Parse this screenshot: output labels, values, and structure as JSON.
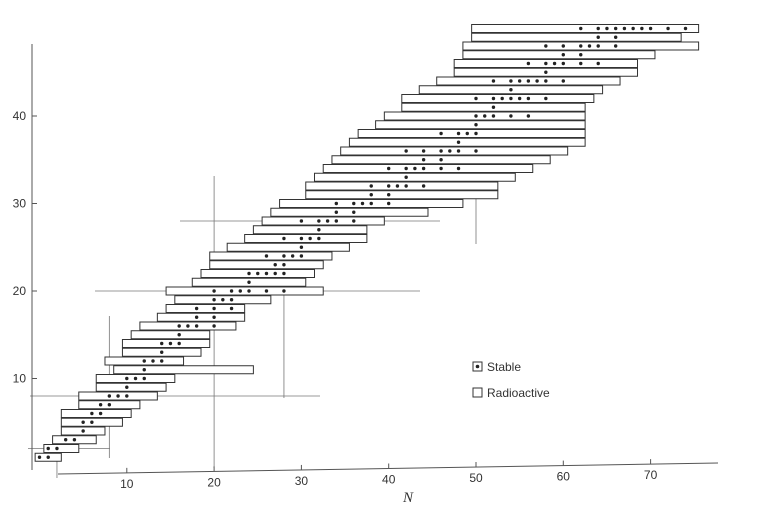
{
  "chart_data": {
    "type": "scatter",
    "title": "",
    "xlabel": "N",
    "ylabel": "",
    "x_ticks": [
      "10",
      "20",
      "30",
      "40",
      "50",
      "60",
      "70"
    ],
    "y_ticks": [
      "10",
      "20",
      "30",
      "40"
    ],
    "xlim": [
      0,
      80
    ],
    "ylim": [
      0,
      50
    ],
    "grid": false,
    "legend_position": "lower-right",
    "legend": [
      {
        "key": "stable",
        "label": "Stable"
      },
      {
        "key": "radioactive",
        "label": "Radioactive"
      }
    ],
    "magic_numbers": {
      "N": [
        2,
        8,
        20,
        28,
        50
      ],
      "Z": [
        2,
        8,
        20,
        28
      ]
    },
    "isotopes": [
      {
        "z": 1,
        "n_min": 0,
        "n_max": 2,
        "stable": [
          0,
          1
        ]
      },
      {
        "z": 2,
        "n_min": 1,
        "n_max": 4,
        "stable": [
          1,
          2
        ]
      },
      {
        "z": 3,
        "n_min": 2,
        "n_max": 6,
        "stable": [
          3,
          4
        ]
      },
      {
        "z": 4,
        "n_min": 3,
        "n_max": 7,
        "stable": [
          5
        ]
      },
      {
        "z": 5,
        "n_min": 3,
        "n_max": 9,
        "stable": [
          5,
          6
        ]
      },
      {
        "z": 6,
        "n_min": 3,
        "n_max": 10,
        "stable": [
          6,
          7
        ]
      },
      {
        "z": 7,
        "n_min": 5,
        "n_max": 11,
        "stable": [
          7,
          8
        ]
      },
      {
        "z": 8,
        "n_min": 5,
        "n_max": 13,
        "stable": [
          8,
          9,
          10
        ]
      },
      {
        "z": 9,
        "n_min": 7,
        "n_max": 14,
        "stable": [
          10
        ]
      },
      {
        "z": 10,
        "n_min": 7,
        "n_max": 15,
        "stable": [
          10,
          11,
          12
        ]
      },
      {
        "z": 11,
        "n_min": 9,
        "n_max": 24,
        "stable": [
          12
        ]
      },
      {
        "z": 12,
        "n_min": 8,
        "n_max": 16,
        "stable": [
          12,
          13,
          14
        ]
      },
      {
        "z": 13,
        "n_min": 10,
        "n_max": 18,
        "stable": [
          14
        ]
      },
      {
        "z": 14,
        "n_min": 10,
        "n_max": 19,
        "stable": [
          14,
          15,
          16
        ]
      },
      {
        "z": 15,
        "n_min": 11,
        "n_max": 19,
        "stable": [
          16
        ]
      },
      {
        "z": 16,
        "n_min": 12,
        "n_max": 22,
        "stable": [
          16,
          17,
          18,
          20
        ]
      },
      {
        "z": 17,
        "n_min": 14,
        "n_max": 23,
        "stable": [
          18,
          20
        ]
      },
      {
        "z": 18,
        "n_min": 15,
        "n_max": 23,
        "stable": [
          18,
          20,
          22
        ]
      },
      {
        "z": 19,
        "n_min": 16,
        "n_max": 26,
        "stable": [
          20,
          21,
          22
        ]
      },
      {
        "z": 20,
        "n_min": 15,
        "n_max": 32,
        "stable": [
          20,
          22,
          23,
          24,
          26,
          28
        ]
      },
      {
        "z": 21,
        "n_min": 18,
        "n_max": 30,
        "stable": [
          24
        ]
      },
      {
        "z": 22,
        "n_min": 19,
        "n_max": 31,
        "stable": [
          24,
          25,
          26,
          27,
          28
        ]
      },
      {
        "z": 23,
        "n_min": 20,
        "n_max": 32,
        "stable": [
          27,
          28
        ]
      },
      {
        "z": 24,
        "n_min": 20,
        "n_max": 33,
        "stable": [
          26,
          28,
          29,
          30
        ]
      },
      {
        "z": 25,
        "n_min": 22,
        "n_max": 35,
        "stable": [
          30
        ]
      },
      {
        "z": 26,
        "n_min": 24,
        "n_max": 37,
        "stable": [
          28,
          30,
          31,
          32
        ]
      },
      {
        "z": 27,
        "n_min": 25,
        "n_max": 37,
        "stable": [
          32
        ]
      },
      {
        "z": 28,
        "n_min": 26,
        "n_max": 39,
        "stable": [
          30,
          32,
          33,
          34,
          36
        ]
      },
      {
        "z": 29,
        "n_min": 27,
        "n_max": 44,
        "stable": [
          34,
          36
        ]
      },
      {
        "z": 30,
        "n_min": 28,
        "n_max": 48,
        "stable": [
          34,
          36,
          37,
          38,
          40
        ]
      },
      {
        "z": 31,
        "n_min": 31,
        "n_max": 52,
        "stable": [
          38,
          40
        ]
      },
      {
        "z": 32,
        "n_min": 31,
        "n_max": 52,
        "stable": [
          38,
          40,
          41,
          42,
          44
        ]
      },
      {
        "z": 33,
        "n_min": 32,
        "n_max": 54,
        "stable": [
          42
        ]
      },
      {
        "z": 34,
        "n_min": 33,
        "n_max": 56,
        "stable": [
          40,
          42,
          43,
          44,
          46,
          48
        ]
      },
      {
        "z": 35,
        "n_min": 34,
        "n_max": 58,
        "stable": [
          44,
          46
        ]
      },
      {
        "z": 36,
        "n_min": 35,
        "n_max": 60,
        "stable": [
          42,
          44,
          46,
          47,
          48,
          50
        ]
      },
      {
        "z": 37,
        "n_min": 36,
        "n_max": 62,
        "stable": [
          48
        ]
      },
      {
        "z": 38,
        "n_min": 37,
        "n_max": 62,
        "stable": [
          46,
          48,
          49,
          50
        ]
      },
      {
        "z": 39,
        "n_min": 39,
        "n_max": 62,
        "stable": [
          50
        ]
      },
      {
        "z": 40,
        "n_min": 40,
        "n_max": 62,
        "stable": [
          50,
          51,
          52,
          54,
          56
        ]
      },
      {
        "z": 41,
        "n_min": 42,
        "n_max": 62,
        "stable": [
          52
        ]
      },
      {
        "z": 42,
        "n_min": 42,
        "n_max": 63,
        "stable": [
          50,
          52,
          53,
          54,
          55,
          56,
          58
        ]
      },
      {
        "z": 43,
        "n_min": 44,
        "n_max": 64,
        "stable": [
          54
        ]
      },
      {
        "z": 44,
        "n_min": 46,
        "n_max": 66,
        "stable": [
          52,
          54,
          55,
          56,
          57,
          58,
          60
        ]
      },
      {
        "z": 45,
        "n_min": 48,
        "n_max": 68,
        "stable": [
          58
        ]
      },
      {
        "z": 46,
        "n_min": 48,
        "n_max": 68,
        "stable": [
          56,
          58,
          59,
          60,
          62,
          64
        ]
      },
      {
        "z": 47,
        "n_min": 49,
        "n_max": 70,
        "stable": [
          60,
          62
        ]
      },
      {
        "z": 48,
        "n_min": 49,
        "n_max": 75,
        "stable": [
          58,
          60,
          62,
          63,
          64,
          66
        ]
      },
      {
        "z": 49,
        "n_min": 50,
        "n_max": 73,
        "stable": [
          64,
          66
        ]
      },
      {
        "z": 50,
        "n_min": 50,
        "n_max": 75,
        "stable": [
          62,
          64,
          65,
          66,
          67,
          68,
          69,
          70,
          72,
          74
        ]
      }
    ]
  }
}
